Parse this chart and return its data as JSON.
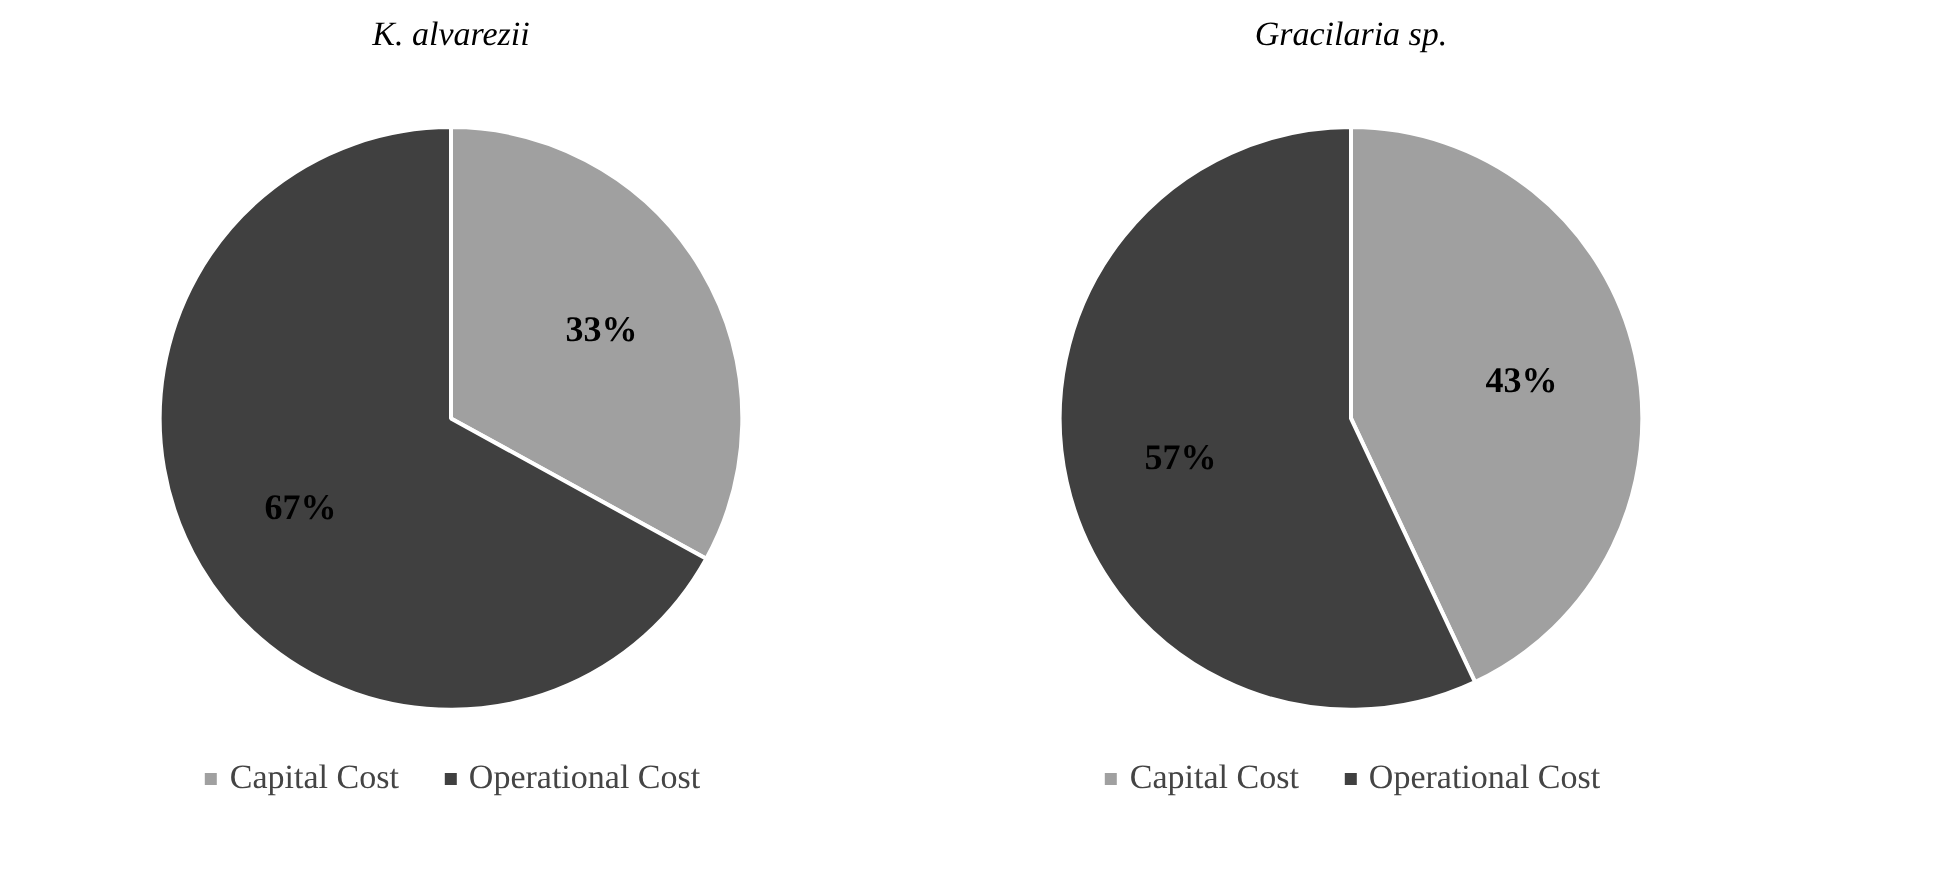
{
  "chart_data": [
    {
      "type": "pie",
      "title": "K. alvarezii",
      "categories": [
        "Capital Cost",
        "Operational Cost"
      ],
      "values": [
        33,
        67
      ],
      "colors": [
        "#a0a0a0",
        "#404040"
      ],
      "value_labels": [
        "33%",
        "67%"
      ],
      "legend": "bottom"
    },
    {
      "type": "pie",
      "title": "Gracilaria sp.",
      "categories": [
        "Capital Cost",
        "Operational Cost"
      ],
      "values": [
        43,
        57
      ],
      "colors": [
        "#a0a0a0",
        "#404040"
      ],
      "value_labels": [
        "43%",
        "57%"
      ],
      "legend": "bottom"
    }
  ]
}
